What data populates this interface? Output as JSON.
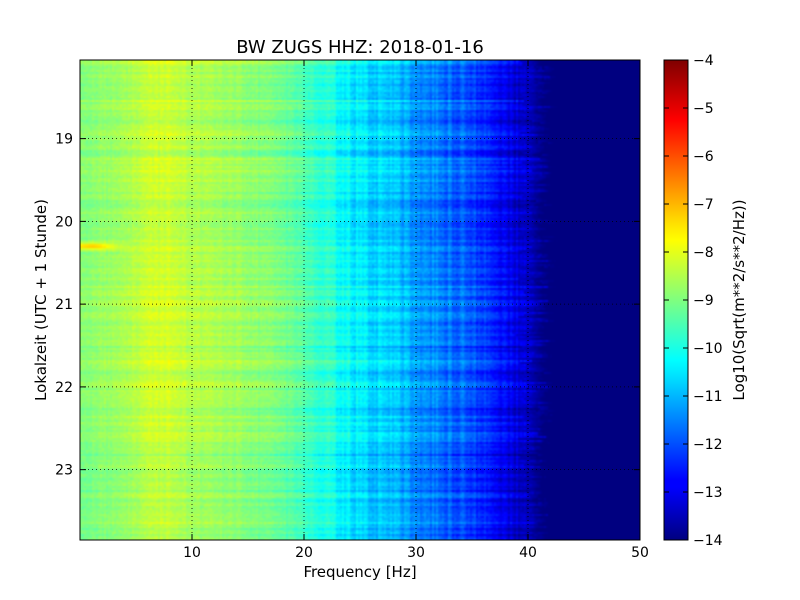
{
  "chart_data": {
    "type": "heatmap",
    "title": "BW ZUGS HHZ: 2018-01-16",
    "xlabel": "Frequency [Hz]",
    "ylabel": "Lokalzeit (UTC + 1 Stunde)",
    "xlim": [
      0,
      50
    ],
    "ylim": [
      18.05,
      23.85
    ],
    "y_axis_inverted": true,
    "x_ticks": [
      10,
      20,
      30,
      40,
      50
    ],
    "x_tick_labels": [
      "10",
      "20",
      "30",
      "40",
      "50"
    ],
    "y_ticks": [
      19,
      20,
      21,
      22,
      23
    ],
    "y_tick_labels": [
      "19",
      "20",
      "21",
      "22",
      "23"
    ],
    "grid": true,
    "colorbar": {
      "label": "Log10(Sqrt(m**2/s**2/Hz))",
      "colormap": "jet",
      "range": [
        -14,
        -4
      ],
      "ticks": [
        -4,
        -5,
        -6,
        -7,
        -8,
        -9,
        -10,
        -11,
        -12,
        -13,
        -14
      ],
      "tick_labels": [
        "−4",
        "−5",
        "−6",
        "−7",
        "−8",
        "−9",
        "−10",
        "−11",
        "−12",
        "−13",
        "−14"
      ]
    },
    "frequency_profile": {
      "frequency_hz": [
        0,
        2,
        4,
        6,
        8,
        10,
        12,
        14,
        16,
        18,
        20,
        22,
        24,
        26,
        28,
        30,
        32,
        34,
        36,
        38,
        40,
        41,
        42,
        44,
        46,
        48,
        50
      ],
      "log_amplitude": [
        -8.9,
        -8.8,
        -8.6,
        -8.3,
        -8.2,
        -8.5,
        -8.6,
        -8.7,
        -8.9,
        -9.1,
        -9.5,
        -9.9,
        -10.3,
        -10.6,
        -10.9,
        -11.2,
        -11.5,
        -11.8,
        -12.2,
        -12.8,
        -13.3,
        -13.6,
        -13.85,
        -13.95,
        -14,
        -14,
        -14
      ]
    },
    "features": [
      {
        "label": "narrowband peak",
        "frequency_hz": 1,
        "time_hour": 20.3,
        "log_amplitude": -7.2
      }
    ]
  }
}
